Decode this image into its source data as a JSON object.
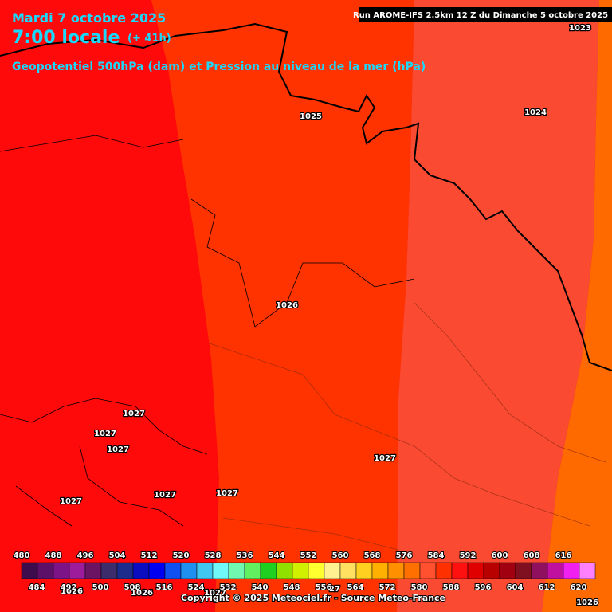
{
  "header": {
    "date": "Mardi 7 octobre 2025",
    "time": "7:00 locale",
    "lead": "(+ 41h)",
    "subtitle": "Geopotentiel 500hPa (dam) et Pression au niveau de la mer (hPa)",
    "run": "Run AROME-IFS 2.5km 12 Z du Dimanche 5 octobre 2025"
  },
  "isobar_labels": [
    "1023",
    "1025",
    "1024",
    "1026",
    "1027",
    "1027",
    "1027",
    "1027",
    "1027",
    "1027",
    "1027",
    "1026",
    "1026",
    "1027",
    "27",
    "1026"
  ],
  "colorbar": {
    "top_labels": [
      "480",
      "488",
      "496",
      "504",
      "512",
      "520",
      "528",
      "536",
      "544",
      "552",
      "560",
      "568",
      "576",
      "584",
      "592",
      "600",
      "608",
      "616"
    ],
    "bottom_labels": [
      "484",
      "492",
      "500",
      "508",
      "516",
      "524",
      "532",
      "540",
      "548",
      "556",
      "564",
      "572",
      "580",
      "588",
      "596",
      "604",
      "612",
      "620"
    ],
    "colors": [
      "#3c0c4c",
      "#5c1068",
      "#7c1488",
      "#9c1c9c",
      "#6c1464",
      "#3c2c6c",
      "#1c2c8c",
      "#0c0cc0",
      "#0000f0",
      "#1050f0",
      "#2090f0",
      "#40c8f0",
      "#70f8f8",
      "#70f8b0",
      "#60f060",
      "#20d020",
      "#90e000",
      "#d0f000",
      "#ffff30",
      "#fff090",
      "#ffe060",
      "#ffd020",
      "#ffb000",
      "#ff9000",
      "#ff7000",
      "#ff5030",
      "#ff3000",
      "#ff1010",
      "#e00000",
      "#b80000",
      "#a00010",
      "#801020",
      "#901060",
      "#c010a0",
      "#f020f0",
      "#ff80ff"
    ]
  },
  "copyright": "Copyright © 2025 Meteociel.fr - Source Meteo-France"
}
